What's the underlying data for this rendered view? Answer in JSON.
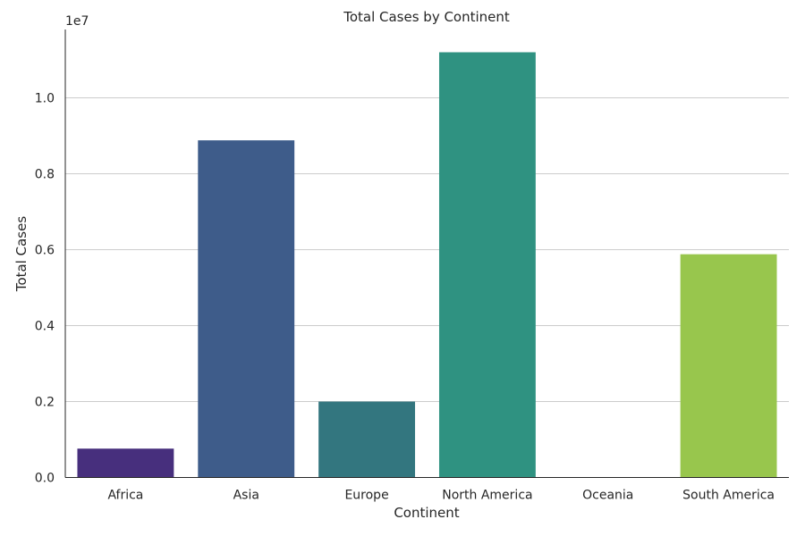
{
  "chart_data": {
    "type": "bar",
    "title": "Total Cases by Continent",
    "xlabel": "Continent",
    "ylabel": "Total Cases",
    "offset_label": "1e7",
    "categories": [
      "Africa",
      "Asia",
      "Europe",
      "North America",
      "Oceania",
      "South America"
    ],
    "values": [
      760000,
      8880000,
      2000000,
      11200000,
      0,
      5880000
    ],
    "colors": [
      "#472f7d",
      "#3e5c8a",
      "#33767f",
      "#2f9281",
      "#37aa74",
      "#98c64d"
    ],
    "ylim": [
      0,
      11800000
    ],
    "yticks": [
      0,
      2000000,
      4000000,
      6000000,
      8000000,
      10000000
    ],
    "ytick_labels": [
      "0.0",
      "0.2",
      "0.4",
      "0.6",
      "0.8",
      "1.0"
    ],
    "grid": true,
    "grid_axis": "y",
    "legend": false
  }
}
